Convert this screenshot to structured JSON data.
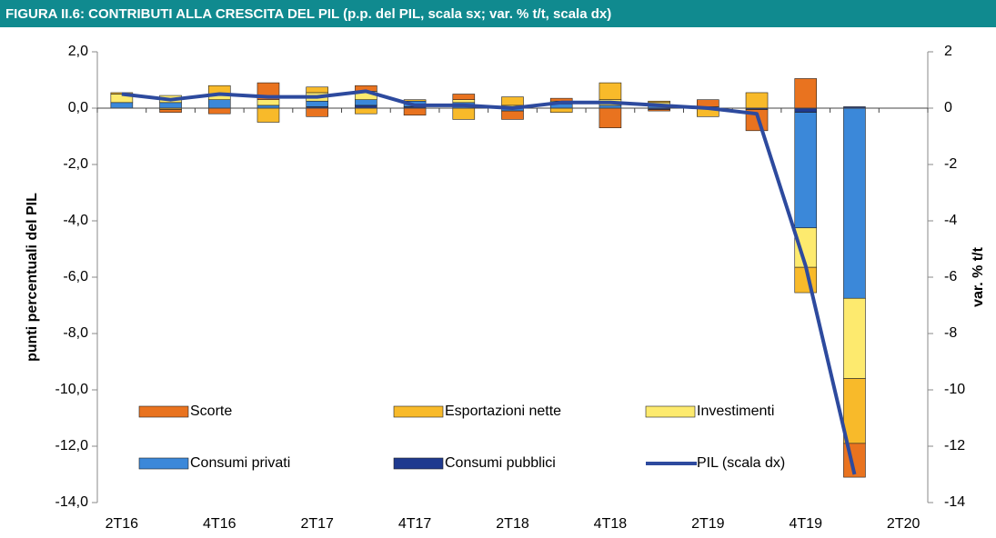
{
  "chart_data": {
    "type": "stacked-bar-line",
    "title": "FIGURA II.6: CONTRIBUTI ALLA CRESCITA DEL PIL (p.p. del PIL, scala sx; var. % t/t, scala dx)",
    "ylabel": "punti percentuali del PIL",
    "y2label": "var. % t/t",
    "categories": [
      "2T16",
      null,
      "4T16",
      null,
      "2T17",
      null,
      "4T17",
      null,
      "2T18",
      null,
      "4T18",
      null,
      "2T19",
      null,
      "4T19",
      null,
      "2T20"
    ],
    "ylim": [
      -14,
      2
    ],
    "yticks": [
      {
        "value": 2,
        "label": "2,0"
      },
      {
        "value": 0,
        "label": "0,0"
      },
      {
        "value": -2,
        "label": "-2,0"
      },
      {
        "value": -4,
        "label": "-4,0"
      },
      {
        "value": -6,
        "label": "-6,0"
      },
      {
        "value": -8,
        "label": "-8,0"
      },
      {
        "value": -10,
        "label": "-10,0"
      },
      {
        "value": -12,
        "label": "-12,0"
      },
      {
        "value": -14,
        "label": "-14,0"
      }
    ],
    "y2lim": [
      -14,
      2
    ],
    "y2ticks": [
      2,
      0,
      -2,
      -4,
      -6,
      -8,
      -10,
      -12,
      -14
    ],
    "legend": "lower-left",
    "series": [
      {
        "name": "Consumi pubblici",
        "color": "#1f3a8f",
        "values": [
          0.0,
          0.0,
          0.0,
          0.0,
          0.05,
          0.1,
          0.05,
          0.0,
          0.0,
          0.0,
          0.0,
          -0.05,
          0.0,
          -0.05,
          -0.15,
          0.05,
          null
        ]
      },
      {
        "name": "Consumi privati",
        "color": "#3b88d9",
        "values": [
          0.2,
          0.2,
          0.3,
          0.1,
          0.2,
          0.2,
          0.2,
          0.2,
          -0.1,
          0.15,
          0.1,
          0.1,
          0.05,
          0.0,
          -4.1,
          -6.75,
          null
        ]
      },
      {
        "name": "Investimenti",
        "color": "#fdea6e",
        "values": [
          0.3,
          0.25,
          0.2,
          0.2,
          0.3,
          0.3,
          0.0,
          0.1,
          0.1,
          0.1,
          0.2,
          0.1,
          0.0,
          0.0,
          -1.4,
          -2.85,
          null
        ]
      },
      {
        "name": "Esportazioni nette",
        "color": "#f8ba2a",
        "values": [
          0.05,
          -0.05,
          0.3,
          -0.5,
          0.2,
          -0.2,
          0.05,
          -0.4,
          0.3,
          -0.15,
          0.6,
          0.05,
          -0.3,
          0.55,
          -0.9,
          -2.3,
          null
        ]
      },
      {
        "name": "Scorte",
        "color": "#e9731f",
        "values": [
          0.0,
          -0.1,
          -0.2,
          0.6,
          -0.3,
          0.2,
          -0.25,
          0.2,
          -0.3,
          0.1,
          -0.7,
          -0.05,
          0.25,
          -0.75,
          1.05,
          -1.2,
          null
        ]
      },
      {
        "name": "PIL (scala dx)",
        "color": "#2d4a9e",
        "type": "line",
        "axis": "y2",
        "values": [
          0.5,
          0.3,
          0.5,
          0.4,
          0.4,
          0.6,
          0.1,
          0.1,
          0.0,
          0.2,
          0.2,
          0.1,
          0.0,
          -0.2,
          -5.6,
          -13.0,
          null
        ]
      }
    ]
  }
}
